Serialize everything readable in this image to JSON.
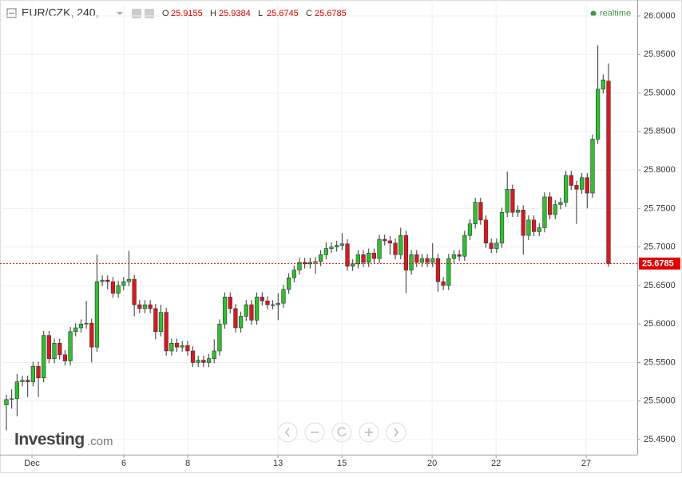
{
  "chart_data": {
    "type": "candlestick",
    "symbol": "EUR/CZK, 240,",
    "ohlc_labels": [
      "O",
      "H",
      "L",
      "C"
    ],
    "status": "realtime",
    "brand": {
      "name": "Investing",
      "suffix": ".com"
    },
    "up_color": "#2fbf2f",
    "down_color": "#d8191f",
    "last_price_color": "#e00000",
    "grid": true,
    "open": [
      25.495,
      25.502,
      25.503,
      25.525,
      25.527,
      25.525,
      25.545,
      25.53,
      25.585,
      25.555,
      25.575,
      25.56,
      25.552,
      25.59,
      25.595,
      25.6,
      25.601,
      25.57,
      25.655,
      25.657,
      25.655,
      25.64,
      25.65,
      25.655,
      25.658,
      25.625,
      25.62,
      25.625,
      25.62,
      25.59,
      25.615,
      25.565,
      25.575,
      25.57,
      25.572,
      25.565,
      25.55,
      25.553,
      25.55,
      25.555,
      25.565,
      25.6,
      25.635,
      25.62,
      25.595,
      25.61,
      25.625,
      25.605,
      25.635,
      25.63,
      25.625,
      25.625,
      25.627,
      25.645,
      25.66,
      25.67,
      25.68,
      25.678,
      25.68,
      25.681,
      25.69,
      25.698,
      25.7,
      25.702,
      25.704,
      25.675,
      25.678,
      25.69,
      25.68,
      25.692,
      25.685,
      25.71,
      25.708,
      25.705,
      25.69,
      25.715,
      25.67,
      25.69,
      25.68,
      25.685,
      25.68,
      25.685,
      25.655,
      25.65,
      25.685,
      25.69,
      25.688,
      25.715,
      25.73,
      25.758,
      25.735,
      25.705,
      25.698,
      25.705,
      25.745,
      25.775,
      25.745,
      25.748,
      25.715,
      25.735,
      25.72,
      25.725,
      25.765,
      25.742,
      25.755,
      25.758,
      25.793,
      25.78,
      25.775,
      25.79,
      25.77,
      25.84,
      25.905,
      25.9155
    ],
    "high": [
      25.508,
      25.515,
      25.535,
      25.533,
      25.533,
      25.551,
      25.551,
      25.591,
      25.591,
      25.581,
      25.581,
      25.566,
      25.596,
      25.601,
      25.606,
      25.63,
      25.607,
      25.69,
      25.663,
      25.663,
      25.661,
      25.656,
      25.661,
      25.695,
      25.664,
      25.631,
      25.631,
      25.631,
      25.626,
      25.625,
      25.621,
      25.581,
      25.581,
      25.578,
      25.578,
      25.571,
      25.559,
      25.559,
      25.561,
      25.58,
      25.606,
      25.641,
      25.641,
      25.626,
      25.616,
      25.631,
      25.631,
      25.641,
      25.641,
      25.636,
      25.631,
      25.64,
      25.651,
      25.666,
      25.676,
      25.686,
      25.686,
      25.686,
      25.687,
      25.696,
      25.706,
      25.706,
      25.708,
      25.718,
      25.71,
      25.684,
      25.696,
      25.696,
      25.698,
      25.698,
      25.716,
      25.716,
      25.714,
      25.711,
      25.725,
      25.721,
      25.696,
      25.696,
      25.691,
      25.691,
      25.705,
      25.691,
      25.661,
      25.691,
      25.696,
      25.696,
      25.721,
      25.736,
      25.764,
      25.764,
      25.741,
      25.711,
      25.711,
      25.751,
      25.798,
      25.781,
      25.754,
      25.754,
      25.741,
      25.741,
      25.731,
      25.771,
      25.771,
      25.761,
      25.764,
      25.799,
      25.799,
      25.786,
      25.796,
      25.796,
      25.846,
      25.962,
      25.924,
      25.9384
    ],
    "low": [
      25.462,
      25.49,
      25.48,
      25.519,
      25.505,
      25.519,
      25.505,
      25.524,
      25.549,
      25.549,
      25.554,
      25.546,
      25.546,
      25.584,
      25.589,
      25.594,
      25.55,
      25.564,
      25.649,
      25.645,
      25.634,
      25.634,
      25.644,
      25.649,
      25.61,
      25.614,
      25.614,
      25.614,
      25.58,
      25.584,
      25.559,
      25.559,
      25.564,
      25.564,
      25.559,
      25.544,
      25.544,
      25.544,
      25.544,
      25.549,
      25.559,
      25.594,
      25.614,
      25.589,
      25.589,
      25.604,
      25.599,
      25.599,
      25.624,
      25.619,
      25.619,
      25.605,
      25.621,
      25.639,
      25.654,
      25.664,
      25.672,
      25.672,
      25.665,
      25.675,
      25.684,
      25.692,
      25.694,
      25.696,
      25.669,
      25.669,
      25.672,
      25.674,
      25.674,
      25.679,
      25.679,
      25.702,
      25.69,
      25.684,
      25.684,
      25.64,
      25.664,
      25.674,
      25.674,
      25.674,
      25.674,
      25.642,
      25.644,
      25.644,
      25.679,
      25.682,
      25.682,
      25.709,
      25.724,
      25.729,
      25.699,
      25.692,
      25.692,
      25.699,
      25.739,
      25.739,
      25.739,
      25.69,
      25.709,
      25.714,
      25.714,
      25.719,
      25.736,
      25.736,
      25.749,
      25.752,
      25.774,
      25.73,
      25.769,
      25.75,
      25.764,
      25.834,
      25.899,
      25.6745
    ],
    "close": [
      25.502,
      25.503,
      25.525,
      25.527,
      25.525,
      25.545,
      25.53,
      25.585,
      25.555,
      25.575,
      25.56,
      25.552,
      25.59,
      25.595,
      25.6,
      25.601,
      25.57,
      25.655,
      25.657,
      25.655,
      25.64,
      25.65,
      25.655,
      25.658,
      25.625,
      25.62,
      25.625,
      25.62,
      25.59,
      25.615,
      25.565,
      25.575,
      25.57,
      25.572,
      25.565,
      25.55,
      25.553,
      25.55,
      25.555,
      25.565,
      25.6,
      25.635,
      25.62,
      25.595,
      25.61,
      25.625,
      25.605,
      25.635,
      25.63,
      25.625,
      25.625,
      25.627,
      25.645,
      25.66,
      25.67,
      25.68,
      25.678,
      25.68,
      25.681,
      25.69,
      25.698,
      25.7,
      25.702,
      25.704,
      25.675,
      25.678,
      25.69,
      25.68,
      25.692,
      25.685,
      25.71,
      25.708,
      25.705,
      25.69,
      25.715,
      25.67,
      25.69,
      25.68,
      25.685,
      25.68,
      25.685,
      25.655,
      25.65,
      25.685,
      25.69,
      25.688,
      25.715,
      25.73,
      25.758,
      25.735,
      25.705,
      25.698,
      25.705,
      25.745,
      25.775,
      25.745,
      25.748,
      25.715,
      25.735,
      25.72,
      25.725,
      25.765,
      25.742,
      25.755,
      25.758,
      25.793,
      25.78,
      25.775,
      25.79,
      25.77,
      25.84,
      25.905,
      25.917,
      25.6785
    ],
    "ylim": [
      25.4303,
      26.0166
    ],
    "yticks": [
      {
        "value": 25.45,
        "label": "25.4500"
      },
      {
        "value": 25.5,
        "label": "25.5000"
      },
      {
        "value": 25.55,
        "label": "25.5500"
      },
      {
        "value": 25.6,
        "label": "25.6000"
      },
      {
        "value": 25.65,
        "label": "25.6500"
      },
      {
        "value": 25.7,
        "label": "25.7000"
      },
      {
        "value": 25.75,
        "label": "25.7500"
      },
      {
        "value": 25.8,
        "label": "25.8000"
      },
      {
        "value": 25.85,
        "label": "25.8500"
      },
      {
        "value": 25.9,
        "label": "25.9000"
      },
      {
        "value": 25.95,
        "label": "25.9500"
      },
      {
        "value": 26.0,
        "label": "26.0000"
      }
    ],
    "xlim": [
      -1.2,
      118.4
    ],
    "xticks": [
      {
        "value": 4.8,
        "label": "Dec"
      },
      {
        "value": 22.04,
        "label": "6"
      },
      {
        "value": 34.03,
        "label": "8"
      },
      {
        "value": 50.97,
        "label": "13"
      },
      {
        "value": 62.97,
        "label": "15"
      },
      {
        "value": 79.9,
        "label": "20"
      },
      {
        "value": 91.9,
        "label": "22"
      },
      {
        "value": 108.8,
        "label": "27"
      }
    ]
  }
}
